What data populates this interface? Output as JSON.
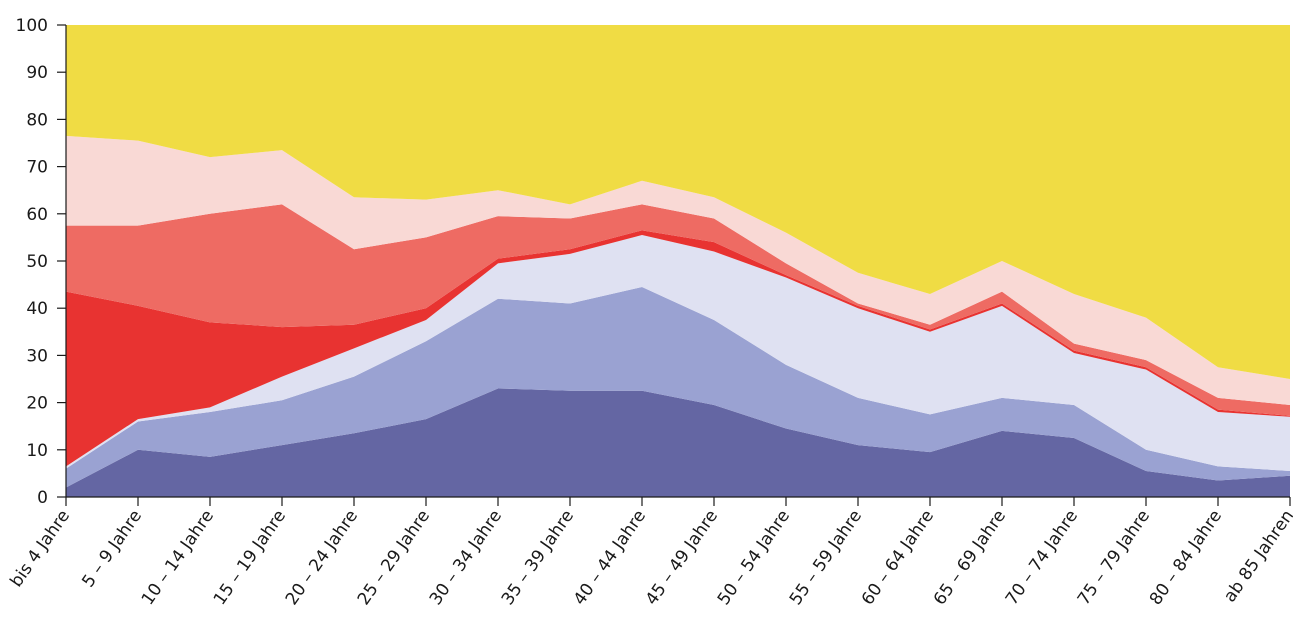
{
  "chart_data": {
    "type": "stacked_area",
    "categories": [
      "bis 4 Jahre",
      "5 – 9 Jahre",
      "10 – 14 Jahre",
      "15 – 19 Jahre",
      "20 – 24 Jahre",
      "25 – 29 Jahre",
      "30 – 34 Jahre",
      "35 – 39 Jahre",
      "40 – 44 Jahre",
      "45 – 49 Jahre",
      "50 – 54 Jahre",
      "55 – 59 Jahre",
      "60 – 64 Jahre",
      "65 – 69 Jahre",
      "70 – 74 Jahre",
      "75 – 79 Jahre",
      "80 – 84 Jahre",
      "ab 85 Jahren"
    ],
    "series": [
      {
        "color": "#6466a3",
        "values": [
          2,
          10,
          8.5,
          11,
          13.5,
          16.5,
          23,
          22.5,
          22.5,
          19.5,
          14.5,
          11,
          9.5,
          14,
          12.5,
          5.5,
          3.5,
          4.5
        ]
      },
      {
        "color": "#9aa2d2",
        "values": [
          4,
          6,
          9.5,
          9.5,
          12,
          16.5,
          19,
          18.5,
          22,
          18,
          13.5,
          10,
          8,
          7,
          7,
          4.5,
          3,
          1
        ]
      },
      {
        "color": "#dfe1f2",
        "values": [
          0.5,
          0.5,
          1,
          5,
          6,
          4.5,
          7.5,
          10.5,
          11,
          14.5,
          18.5,
          19,
          17.5,
          19.5,
          11,
          17,
          11.5,
          11.5
        ]
      },
      {
        "color": "#e83331",
        "values": [
          37,
          24,
          18,
          10.5,
          5,
          2.5,
          1,
          1,
          1,
          2,
          0.5,
          0.5,
          0.5,
          0.5,
          0.5,
          0.5,
          0.5,
          0.2
        ]
      },
      {
        "color": "#ee6b63",
        "values": [
          14,
          17,
          23,
          26,
          16,
          15,
          9,
          6.5,
          5.5,
          5,
          2.5,
          0.5,
          1,
          2.5,
          1.5,
          1.5,
          2.5,
          2.3
        ]
      },
      {
        "color": "#f9d9d5",
        "values": [
          19,
          18,
          12,
          11.5,
          11,
          8,
          5.5,
          3,
          5,
          4.5,
          6.5,
          6.5,
          6.5,
          6.5,
          10.5,
          9,
          6.5,
          5.5
        ]
      },
      {
        "color": "#f0dc44",
        "values": [
          23.5,
          24.5,
          28,
          26.5,
          36.5,
          37,
          35,
          38,
          33,
          36.5,
          44,
          52.5,
          57,
          50,
          57,
          62,
          72.5,
          75
        ]
      }
    ],
    "ylim": [
      0,
      100
    ],
    "yticks": [
      0,
      10,
      20,
      30,
      40,
      50,
      60,
      70,
      80,
      90,
      100
    ]
  }
}
